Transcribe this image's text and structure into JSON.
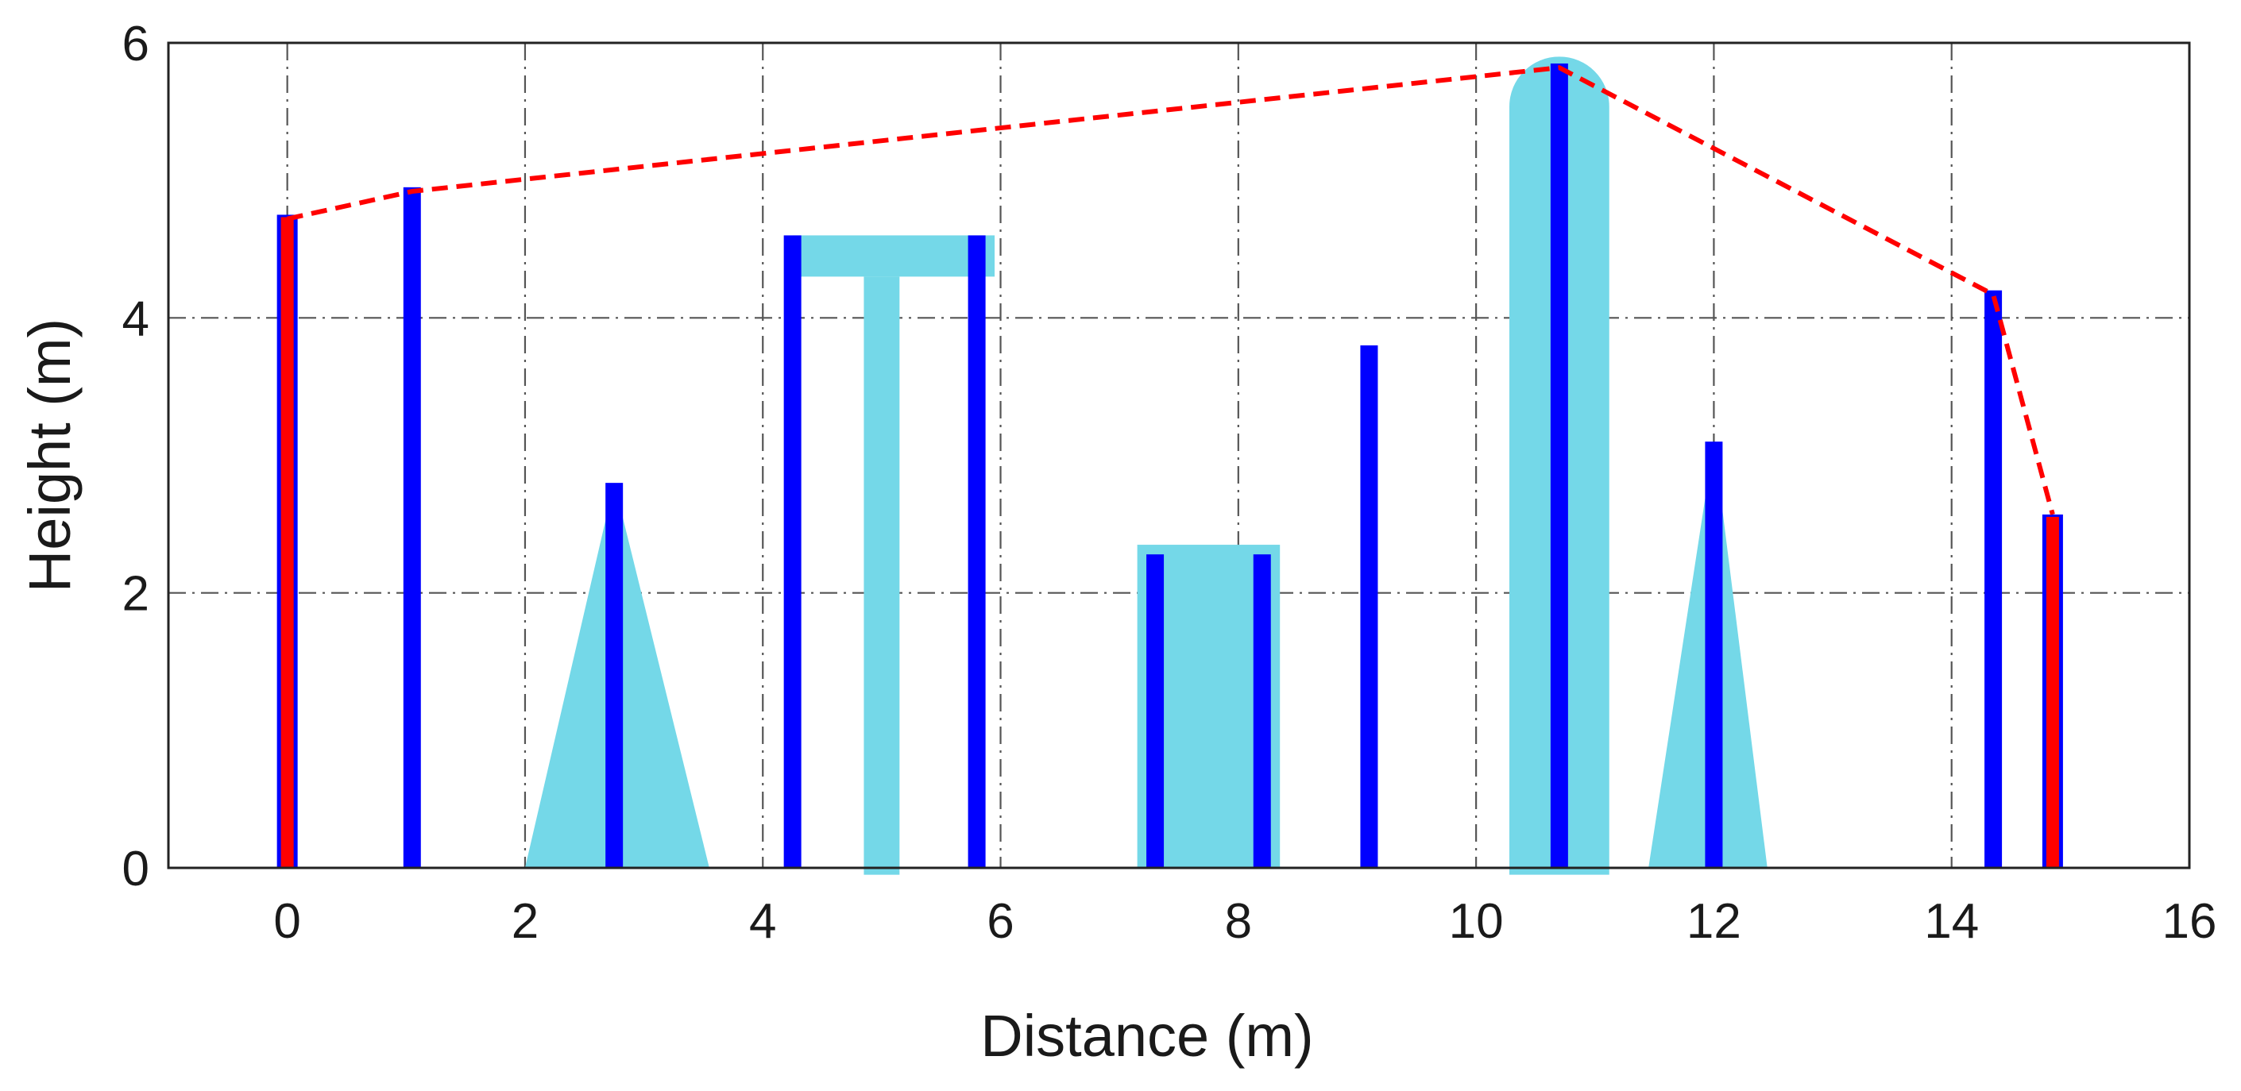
{
  "chart_data": {
    "type": "bar",
    "title": "",
    "xlabel": "Distance (m)",
    "ylabel": "Height (m)",
    "xlim": [
      -1,
      16
    ],
    "ylim": [
      0,
      6
    ],
    "xticks": [
      0,
      2,
      4,
      6,
      8,
      10,
      12,
      14,
      16
    ],
    "yticks": [
      0,
      2,
      4,
      6
    ],
    "grid": true,
    "colors": {
      "obstacle": "#0000ff",
      "endpoint": "#ff0000",
      "shape": "#74d8e8",
      "line": "#ff0000",
      "grid": "#555555",
      "axis": "#222222"
    },
    "endpoint_bars": [
      {
        "x": 0.0,
        "height": 4.75
      },
      {
        "x": 14.85,
        "height": 2.57
      }
    ],
    "obstacle_bars": [
      {
        "x": 1.05,
        "height": 4.95
      },
      {
        "x": 2.75,
        "height": 2.8
      },
      {
        "x": 4.25,
        "height": 4.6
      },
      {
        "x": 5.8,
        "height": 4.6
      },
      {
        "x": 7.3,
        "height": 2.28
      },
      {
        "x": 8.2,
        "height": 2.28
      },
      {
        "x": 9.1,
        "height": 3.8
      },
      {
        "x": 10.7,
        "height": 5.85
      },
      {
        "x": 12.0,
        "height": 3.1
      },
      {
        "x": 14.35,
        "height": 4.2
      }
    ],
    "shapes": [
      {
        "kind": "triangle",
        "x": [
          2.0,
          3.55
        ],
        "top": [
          2.75,
          2.8
        ],
        "base_y": 0
      },
      {
        "kind": "t-shape",
        "bar_x": [
          4.25,
          5.95
        ],
        "bar_y": [
          4.3,
          4.6
        ],
        "stem_x": [
          4.85,
          5.15
        ],
        "stem_y": [
          -0.05,
          4.3
        ]
      },
      {
        "kind": "rectangle",
        "x": [
          7.15,
          8.35
        ],
        "y": [
          0,
          2.35
        ]
      },
      {
        "kind": "rounded-tower",
        "x": [
          10.28,
          11.12
        ],
        "y": [
          -0.05,
          5.9
        ]
      },
      {
        "kind": "triangle",
        "x": [
          11.45,
          12.45
        ],
        "top": [
          12.0,
          3.1
        ],
        "base_y": 0
      }
    ],
    "dashed_line": {
      "x": [
        0.0,
        1.05,
        10.7,
        14.35,
        14.85
      ],
      "y": [
        4.72,
        4.92,
        5.82,
        4.17,
        2.57
      ]
    }
  }
}
